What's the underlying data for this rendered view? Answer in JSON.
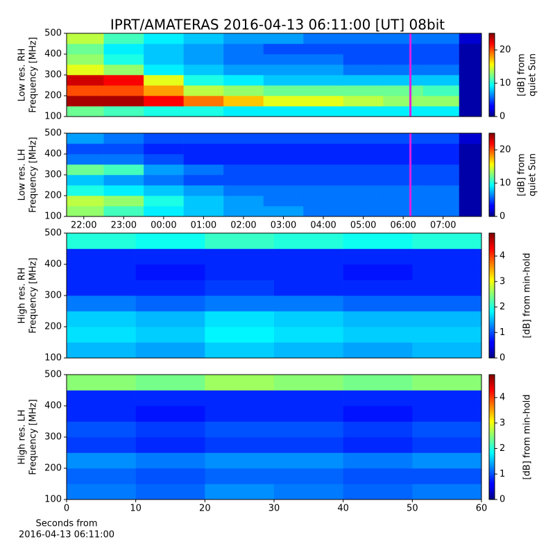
{
  "chart_data": [
    {
      "type": "heatmap",
      "title": "IPRT/AMATERAS 2016-04-13 06:11:00 [UT]   08bit",
      "ylabel": [
        "Low res. RH",
        "Frequency [MHz]"
      ],
      "cbar_label": [
        "[dB] from",
        "quiet Sun"
      ],
      "xbins": [
        21.57,
        22.5,
        23.5,
        24.5,
        25.5,
        26.5,
        27.5,
        28.5,
        29.5,
        30.5,
        31.4,
        31.96
      ],
      "ybins": [
        100,
        150,
        200,
        250,
        300,
        350,
        400,
        450,
        500
      ],
      "z": [
        [
          12,
          11,
          10,
          10,
          9,
          9,
          9,
          9,
          9,
          9,
          1
        ],
        [
          24,
          24,
          22,
          19,
          17,
          15,
          15,
          14,
          13,
          13,
          1
        ],
        [
          20,
          20,
          18,
          14,
          13,
          12,
          12,
          12,
          12,
          11,
          1
        ],
        [
          23,
          22,
          15,
          10,
          9,
          8,
          8,
          8,
          8,
          8,
          1
        ],
        [
          15,
          13,
          9,
          8,
          7,
          7,
          7,
          6,
          6,
          6,
          1
        ],
        [
          13,
          10,
          8,
          7,
          6,
          6,
          6,
          5,
          5,
          5,
          1
        ],
        [
          12,
          9,
          8,
          7,
          6,
          5,
          5,
          5,
          5,
          5,
          1
        ],
        [
          14,
          11,
          9,
          8,
          7,
          7,
          6,
          6,
          6,
          6,
          2
        ]
      ],
      "xlim": [
        21.57,
        31.96
      ],
      "ylim": [
        100,
        500
      ],
      "yticks": [
        100,
        200,
        300,
        400,
        500
      ],
      "clim": [
        0,
        25
      ],
      "cticks": [
        0,
        10,
        20
      ],
      "colormap": "jet",
      "cursor": {
        "x": 30.18,
        "color": "#e020e0"
      }
    },
    {
      "type": "heatmap",
      "ylabel": [
        "Low res. LH",
        "Frequency [MHz]"
      ],
      "cbar_label": [
        "[dB] from",
        "quiet Sun"
      ],
      "xbins": [
        21.57,
        22.5,
        23.5,
        24.5,
        25.5,
        26.5,
        27.5,
        28.5,
        29.5,
        30.5,
        31.4,
        31.96
      ],
      "ybins": [
        100,
        150,
        200,
        250,
        300,
        350,
        400,
        450,
        500
      ],
      "z": [
        [
          13,
          11,
          9,
          8,
          7,
          7,
          6,
          6,
          6,
          6,
          1
        ],
        [
          14,
          13,
          10,
          8,
          7,
          6,
          6,
          6,
          6,
          6,
          1
        ],
        [
          10,
          9,
          8,
          7,
          6,
          6,
          6,
          6,
          6,
          6,
          1
        ],
        [
          8,
          7,
          6,
          5,
          5,
          5,
          5,
          5,
          5,
          5,
          1
        ],
        [
          12,
          11,
          7,
          6,
          5,
          5,
          5,
          5,
          5,
          5,
          1
        ],
        [
          6,
          6,
          5,
          4,
          4,
          4,
          4,
          4,
          4,
          4,
          1
        ],
        [
          5,
          5,
          4,
          4,
          4,
          4,
          4,
          4,
          4,
          4,
          1
        ],
        [
          7,
          6,
          5,
          5,
          5,
          5,
          5,
          5,
          5,
          5,
          2
        ]
      ],
      "xlim": [
        21.57,
        31.96
      ],
      "ylim": [
        100,
        500
      ],
      "yticks": [
        100,
        200,
        300,
        400,
        500
      ],
      "xticks": [
        {
          "value": 22,
          "label": "22:00"
        },
        {
          "value": 23,
          "label": "23:00"
        },
        {
          "value": 24,
          "label": "00:00"
        },
        {
          "value": 25,
          "label": "01:00"
        },
        {
          "value": 26,
          "label": "02:00"
        },
        {
          "value": 27,
          "label": "03:00"
        },
        {
          "value": 28,
          "label": "04:00"
        },
        {
          "value": 29,
          "label": "05:00"
        },
        {
          "value": 30,
          "label": "06:00"
        },
        {
          "value": 31,
          "label": "07:00"
        }
      ],
      "clim": [
        0,
        25
      ],
      "cticks": [
        0,
        10,
        20
      ],
      "colormap": "jet",
      "cursor": {
        "x": 30.18,
        "color": "#e020e0"
      }
    },
    {
      "type": "heatmap",
      "ylabel": [
        "High res. RH",
        "Frequency [MHz]"
      ],
      "cbar_label": [
        "[dB] from min-hold"
      ],
      "xbins": [
        0,
        10,
        20,
        30,
        40,
        50,
        60
      ],
      "ybins": [
        100,
        150,
        200,
        250,
        300,
        350,
        400,
        450,
        500
      ],
      "z": [
        [
          1.5,
          1.4,
          1.6,
          1.5,
          1.4,
          1.5
        ],
        [
          1.7,
          1.6,
          1.8,
          1.7,
          1.6,
          1.6
        ],
        [
          1.6,
          1.5,
          1.7,
          1.6,
          1.5,
          1.5
        ],
        [
          1.2,
          1.1,
          1.2,
          1.2,
          1.1,
          1.1
        ],
        [
          0.8,
          0.8,
          0.9,
          0.8,
          0.8,
          0.8
        ],
        [
          0.8,
          0.7,
          0.8,
          0.8,
          0.7,
          0.8
        ],
        [
          0.8,
          0.8,
          0.8,
          0.8,
          0.8,
          0.8
        ],
        [
          2.0,
          1.9,
          2.1,
          2.0,
          1.9,
          2.0
        ]
      ],
      "xlim": [
        0,
        60
      ],
      "ylim": [
        100,
        500
      ],
      "yticks": [
        100,
        200,
        300,
        400,
        500
      ],
      "clim": [
        0,
        4.9
      ],
      "cticks": [
        0,
        1,
        2,
        3,
        4
      ],
      "colormap": "jet"
    },
    {
      "type": "heatmap",
      "ylabel": [
        "High res. LH",
        "Frequency [MHz]"
      ],
      "cbar_label": [
        "[dB] from min-hold"
      ],
      "xlabel": [
        "Seconds from",
        "2016-04-13 06:11:00"
      ],
      "xbins": [
        0,
        10,
        20,
        30,
        40,
        50,
        60
      ],
      "ybins": [
        100,
        150,
        200,
        250,
        300,
        350,
        400,
        450,
        500
      ],
      "z": [
        [
          1.2,
          1.1,
          1.3,
          1.2,
          1.1,
          1.2
        ],
        [
          1.1,
          1.0,
          1.1,
          1.1,
          1.0,
          1.0
        ],
        [
          1.3,
          1.2,
          1.3,
          1.3,
          1.2,
          1.3
        ],
        [
          0.9,
          0.8,
          0.9,
          0.9,
          0.8,
          0.9
        ],
        [
          1.0,
          0.9,
          1.0,
          1.0,
          0.9,
          1.0
        ],
        [
          0.8,
          0.7,
          0.8,
          0.8,
          0.7,
          0.8
        ],
        [
          0.8,
          0.8,
          0.8,
          0.8,
          0.8,
          0.8
        ],
        [
          2.5,
          2.4,
          2.6,
          2.5,
          2.4,
          2.5
        ]
      ],
      "xlim": [
        0,
        60
      ],
      "ylim": [
        100,
        500
      ],
      "yticks": [
        100,
        200,
        300,
        400,
        500
      ],
      "xticks": [
        0,
        10,
        20,
        30,
        40,
        50,
        60
      ],
      "clim": [
        0,
        4.9
      ],
      "cticks": [
        0,
        1,
        2,
        3,
        4
      ],
      "colormap": "jet"
    }
  ]
}
